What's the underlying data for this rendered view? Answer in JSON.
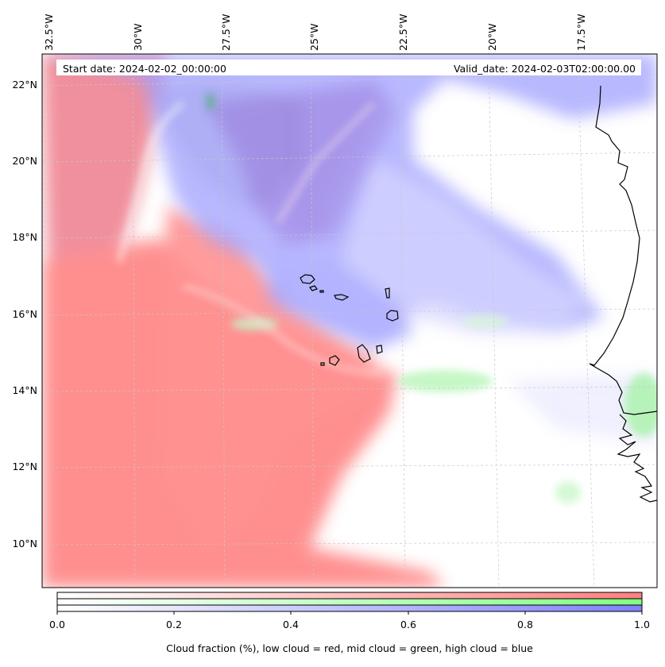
{
  "map": {
    "start_label": "Start date: 2024-02-02_00:00:00",
    "valid_label": "Valid_date: 2024-02-03T02:00:00.00",
    "lon_labels": [
      "32.5°W",
      "30°W",
      "27.5°W",
      "25°W",
      "22.5°W",
      "20°W",
      "17.5°W"
    ],
    "lat_labels": [
      "22°N",
      "20°N",
      "18°N",
      "16°N",
      "14°N",
      "12°N",
      "10°N"
    ]
  },
  "colorbar": {
    "ticks": [
      "0.0",
      "0.2",
      "0.4",
      "0.6",
      "0.8",
      "1.0"
    ],
    "label": "Cloud fraction (%), low cloud = red, mid cloud = green, high cloud = blue",
    "colors": {
      "low": "#ff8080",
      "mid": "#80ff80",
      "high": "#8080ff"
    }
  }
}
